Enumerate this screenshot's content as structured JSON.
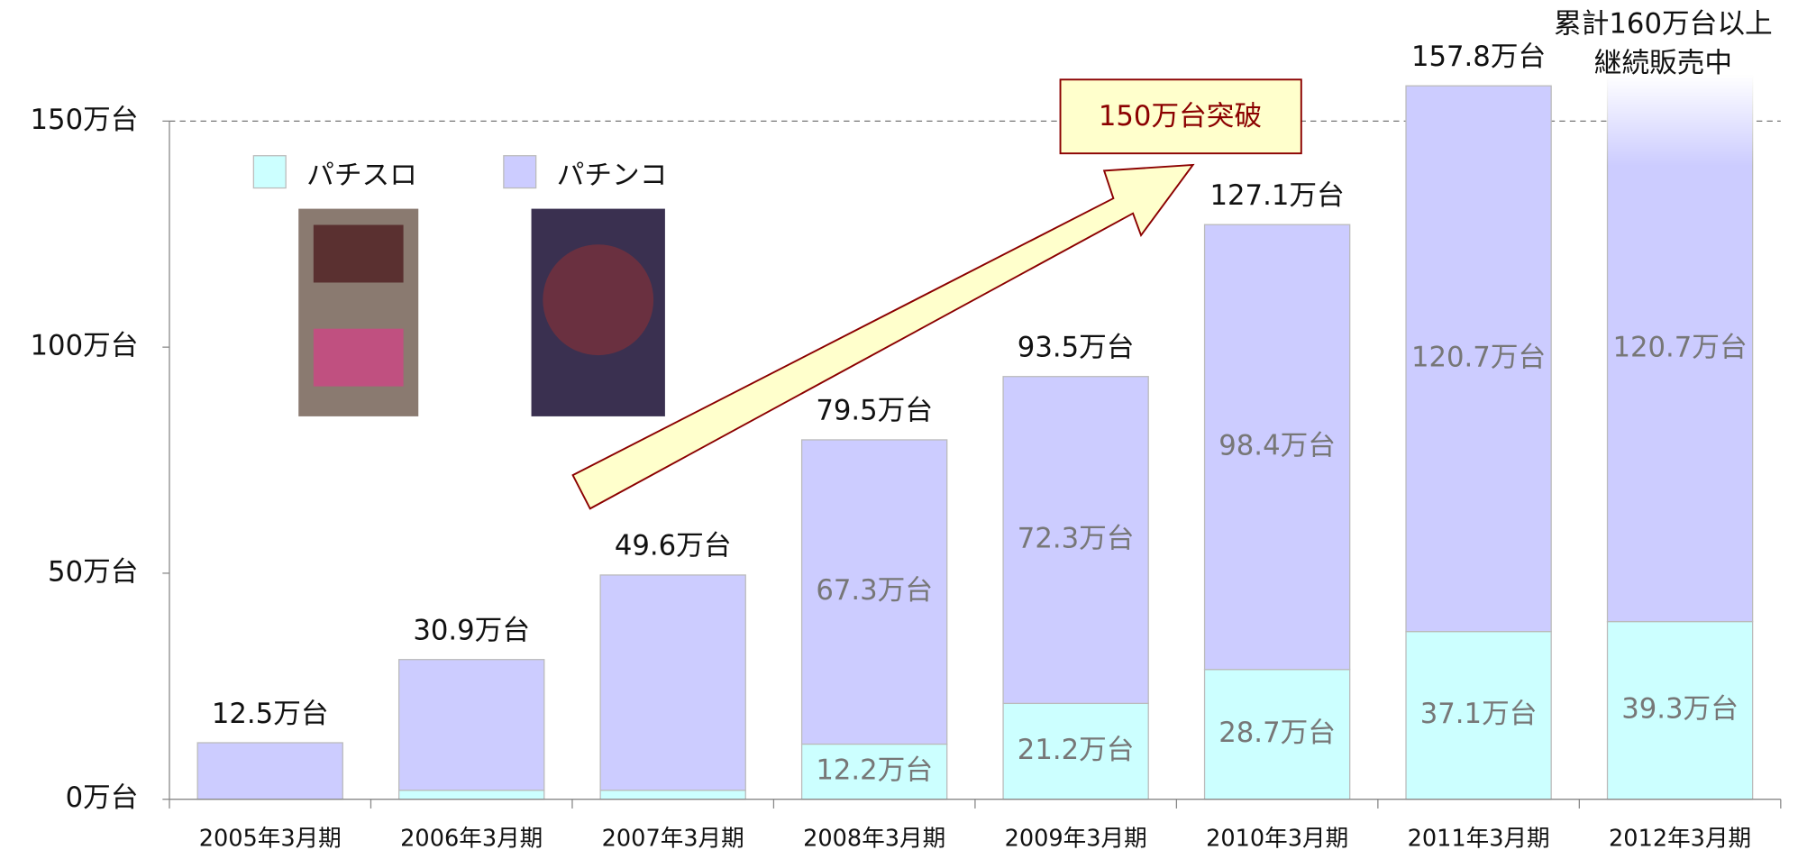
{
  "chart_data": {
    "type": "stacked-bar",
    "categories": [
      "2005年3月期",
      "2006年3月期",
      "2007年3月期",
      "2008年3月期",
      "2009年3月期",
      "2010年3月期",
      "2011年3月期",
      "2012年3月期"
    ],
    "series": [
      {
        "name": "パチスロ",
        "color": "#ccffff",
        "values": [
          0,
          2,
          2,
          12.2,
          21.2,
          28.7,
          37.1,
          39.3
        ],
        "value_labels": [
          null,
          null,
          null,
          "12.2万台",
          "21.2万台",
          "28.7万台",
          "37.1万台",
          "39.3万台"
        ]
      },
      {
        "name": "パチンコ",
        "color": "#ccccff",
        "values": [
          12.5,
          28.9,
          47.6,
          67.3,
          72.3,
          98.4,
          120.7,
          120.7
        ],
        "value_labels": [
          null,
          null,
          null,
          "67.3万台",
          "72.3万台",
          "98.4万台",
          "120.7万台",
          "120.7万台"
        ]
      }
    ],
    "totals": [
      12.5,
      30.9,
      49.6,
      79.5,
      93.5,
      127.1,
      157.8,
      null
    ],
    "total_labels": [
      "12.5万台",
      "30.9万台",
      "49.6万台",
      "79.5万台",
      "93.5万台",
      "127.1万台",
      "157.8万台",
      null
    ],
    "ylim": [
      0,
      150
    ],
    "yticks": [
      {
        "value": 0,
        "label": "0万台"
      },
      {
        "value": 50,
        "label": "50万台"
      },
      {
        "value": 100,
        "label": "100万台"
      },
      {
        "value": 150,
        "label": "150万台"
      }
    ],
    "reference_line": 150,
    "annotations": [
      "150万台突破",
      "累計160万台以上",
      "継続販売中"
    ]
  }
}
